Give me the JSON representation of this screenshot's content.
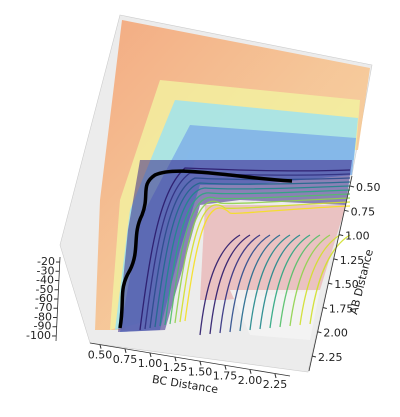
{
  "chart_data": {
    "type": "surface3d",
    "xlabel": "BC Distance",
    "ylabel": "AB Distance",
    "xlim": [
      0.4,
      2.4
    ],
    "ylim": [
      0.4,
      2.4
    ],
    "zlim": [
      -105,
      -15
    ],
    "xticks": [
      {
        "value": 0.5,
        "label": "0.50"
      },
      {
        "value": 0.75,
        "label": "0.75"
      },
      {
        "value": 1.0,
        "label": "1.00"
      },
      {
        "value": 1.25,
        "label": "1.25"
      },
      {
        "value": 1.5,
        "label": "1.50"
      },
      {
        "value": 1.75,
        "label": "1.75"
      },
      {
        "value": 2.0,
        "label": "2.00"
      },
      {
        "value": 2.25,
        "label": "2.25"
      }
    ],
    "yticks": [
      {
        "value": 0.5,
        "label": "0.50"
      },
      {
        "value": 0.75,
        "label": "0.75"
      },
      {
        "value": 1.0,
        "label": "1.00"
      },
      {
        "value": 1.25,
        "label": "1.25"
      },
      {
        "value": 1.5,
        "label": "1.50"
      },
      {
        "value": 1.75,
        "label": "1.75"
      },
      {
        "value": 2.0,
        "label": "2.00"
      },
      {
        "value": 2.25,
        "label": "2.25"
      }
    ],
    "zticks": [
      -20,
      -30,
      -40,
      -50,
      -60,
      -70,
      -80,
      -90,
      -100
    ]
  }
}
